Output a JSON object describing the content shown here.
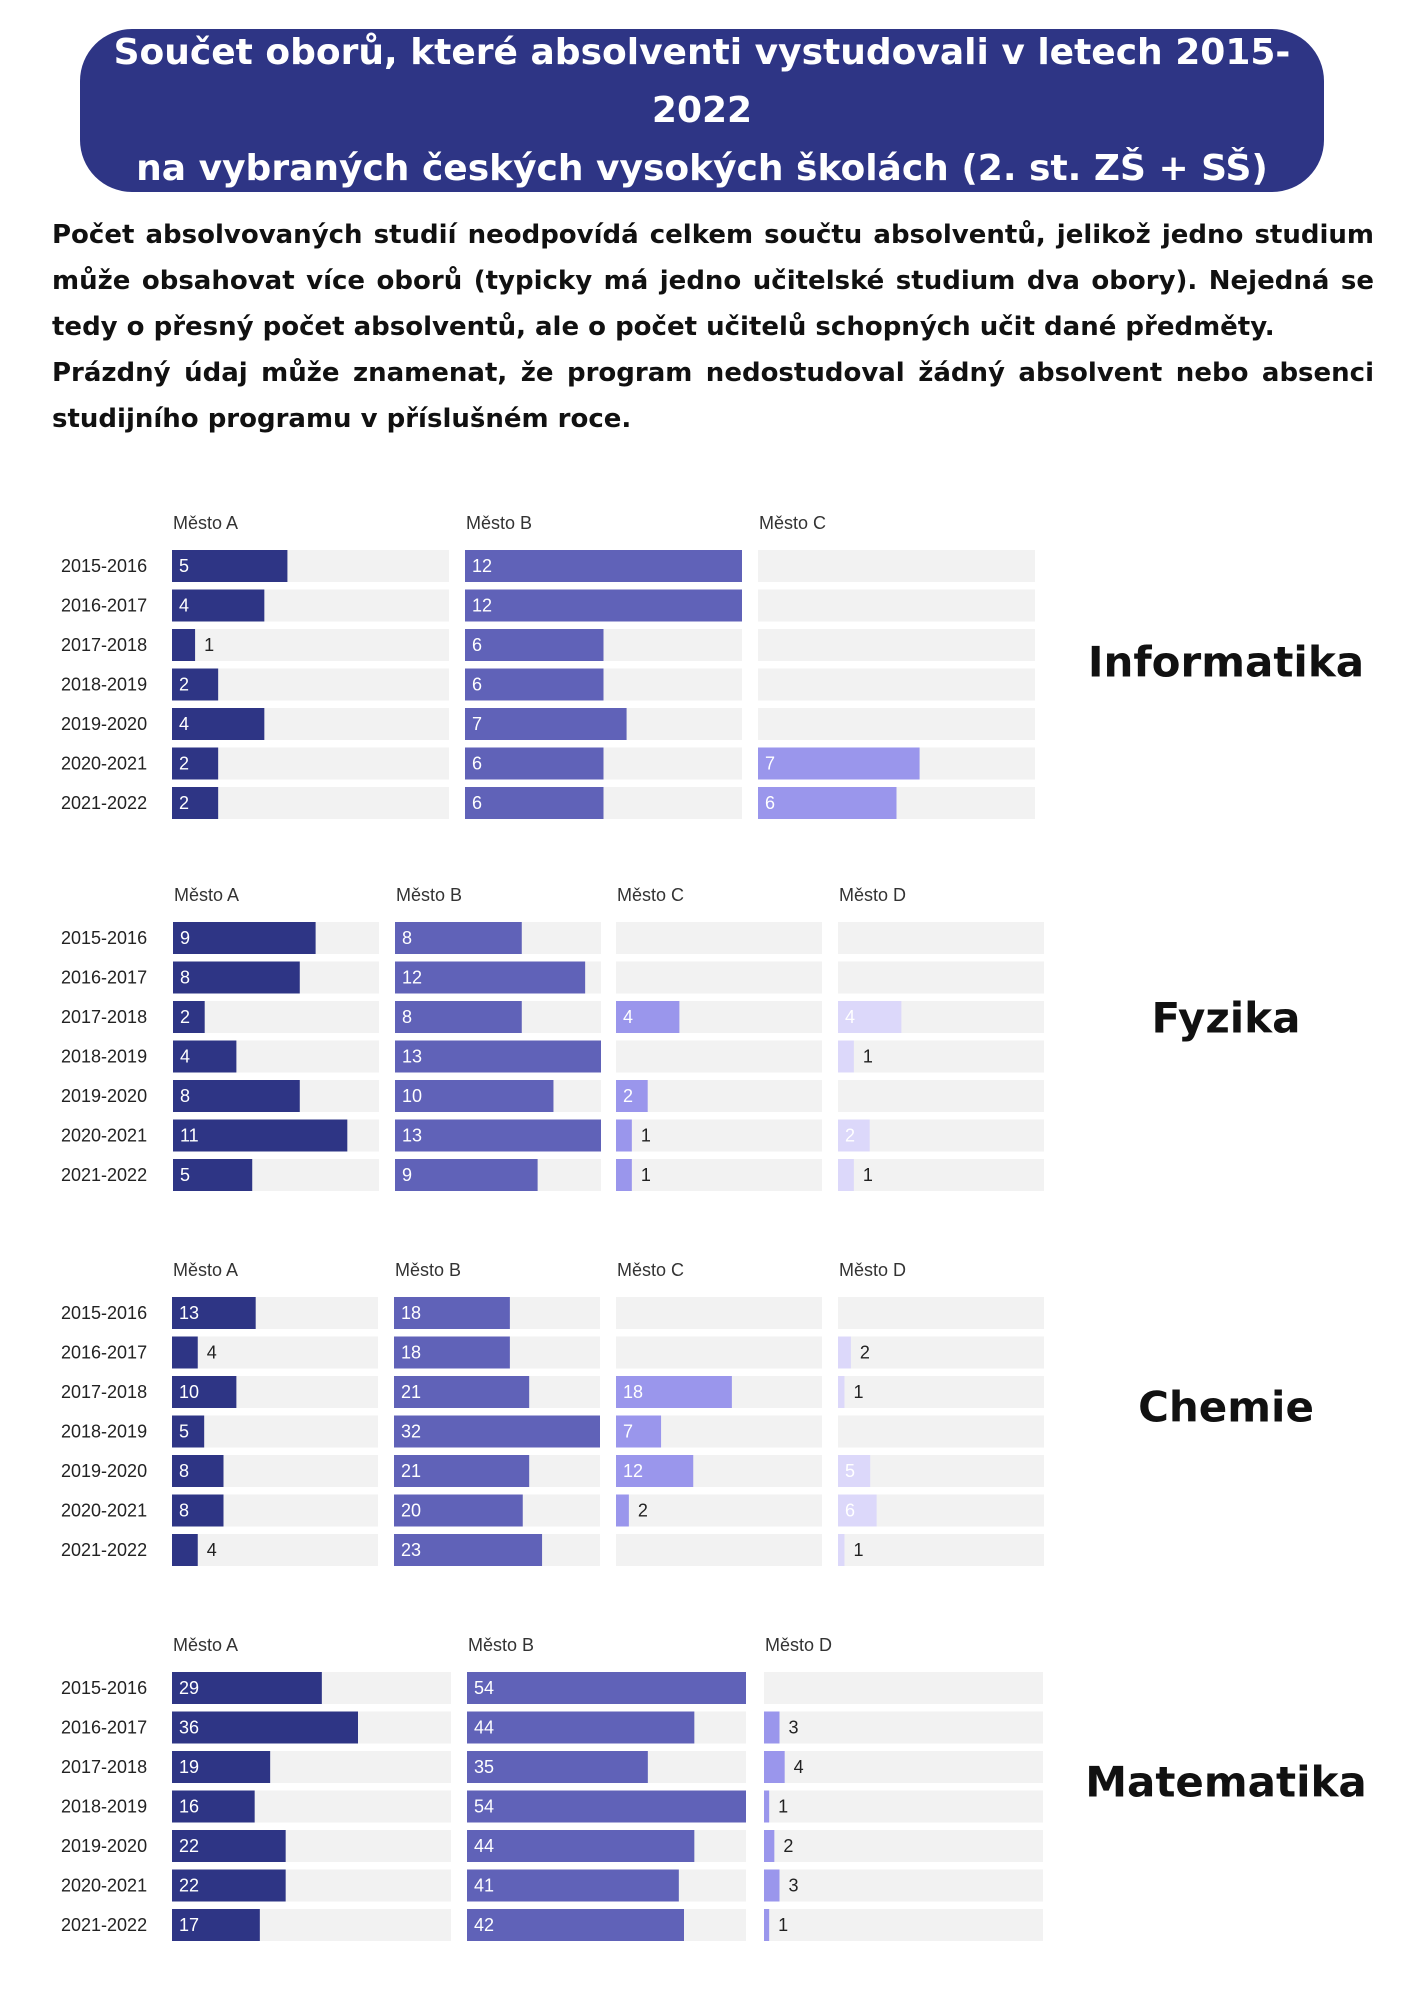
{
  "header": {
    "title_line1": "Součet oborů, které absolventi vystudovali v letech 2015-2022",
    "title_line2": "na vybraných českých vysokých školách (2. st. ZŠ + SŠ)"
  },
  "intro": {
    "paragraph1": "Počet absolvovaných studií neodpovídá celkem součtu absolventů, jelikož jedno studium může obsahovat více oborů (typicky má jedno učitelské studium dva obory). Nejedná se tedy o přesný počet absolventů, ale o počet učitelů schopných učit dané předměty.",
    "paragraph2": "Prázdný údaj může znamenat, že program nedostudoval žádný absolvent nebo absenci studijního programu v příslušném roce."
  },
  "colors": {
    "track": "#f2f2f2",
    "series": [
      "#2e3585",
      "#6062b8",
      "#9a96ec",
      "#dcd8fa"
    ],
    "series_city_d_fyzika": "#dcd8fa",
    "label_on_bar": "#ffffff",
    "label_off_bar": "#222222"
  },
  "chart_data": [
    {
      "type": "bar",
      "subject": "Informatika",
      "categories": [
        "2015-2016",
        "2016-2017",
        "2017-2018",
        "2018-2019",
        "2019-2020",
        "2020-2021",
        "2021-2022"
      ],
      "series": [
        {
          "name": "Město A",
          "values": [
            5,
            4,
            1,
            2,
            4,
            2,
            2
          ],
          "max": 12
        },
        {
          "name": "Město B",
          "values": [
            12,
            12,
            6,
            6,
            7,
            6,
            6
          ],
          "max": 12
        },
        {
          "name": "Město C",
          "values": [
            null,
            null,
            null,
            null,
            null,
            7,
            6
          ],
          "max": 12
        }
      ]
    },
    {
      "type": "bar",
      "subject": "Fyzika",
      "categories": [
        "2015-2016",
        "2016-2017",
        "2017-2018",
        "2018-2019",
        "2019-2020",
        "2020-2021",
        "2021-2022"
      ],
      "series": [
        {
          "name": "Město A",
          "values": [
            9,
            8,
            2,
            4,
            8,
            11,
            5
          ],
          "max": 13
        },
        {
          "name": "Město B",
          "values": [
            8,
            12,
            8,
            13,
            10,
            13,
            9
          ],
          "max": 13
        },
        {
          "name": "Město C",
          "values": [
            null,
            null,
            4,
            null,
            2,
            1,
            1
          ],
          "max": 13
        },
        {
          "name": "Město D",
          "values": [
            null,
            null,
            4,
            1,
            null,
            2,
            1
          ],
          "max": 13
        }
      ]
    },
    {
      "type": "bar",
      "subject": "Chemie",
      "categories": [
        "2015-2016",
        "2016-2017",
        "2017-2018",
        "2018-2019",
        "2019-2020",
        "2020-2021",
        "2021-2022"
      ],
      "series": [
        {
          "name": "Město A",
          "values": [
            13,
            4,
            10,
            5,
            8,
            8,
            4
          ],
          "max": 32
        },
        {
          "name": "Město B",
          "values": [
            18,
            18,
            21,
            32,
            21,
            20,
            23
          ],
          "max": 32
        },
        {
          "name": "Město C",
          "values": [
            null,
            null,
            18,
            7,
            12,
            2,
            null
          ],
          "max": 32
        },
        {
          "name": "Město D",
          "values": [
            null,
            2,
            1,
            null,
            5,
            6,
            1
          ],
          "max": 32
        }
      ]
    },
    {
      "type": "bar",
      "subject": "Matematika",
      "categories": [
        "2015-2016",
        "2016-2017",
        "2017-2018",
        "2018-2019",
        "2019-2020",
        "2020-2021",
        "2021-2022"
      ],
      "series": [
        {
          "name": "Město A",
          "values": [
            29,
            36,
            19,
            16,
            22,
            22,
            17
          ],
          "max": 54
        },
        {
          "name": "Město B",
          "values": [
            54,
            44,
            35,
            54,
            44,
            41,
            42
          ],
          "max": 54
        },
        {
          "name": "Město D",
          "values": [
            null,
            3,
            4,
            1,
            2,
            3,
            1
          ],
          "max": 54
        }
      ]
    }
  ]
}
